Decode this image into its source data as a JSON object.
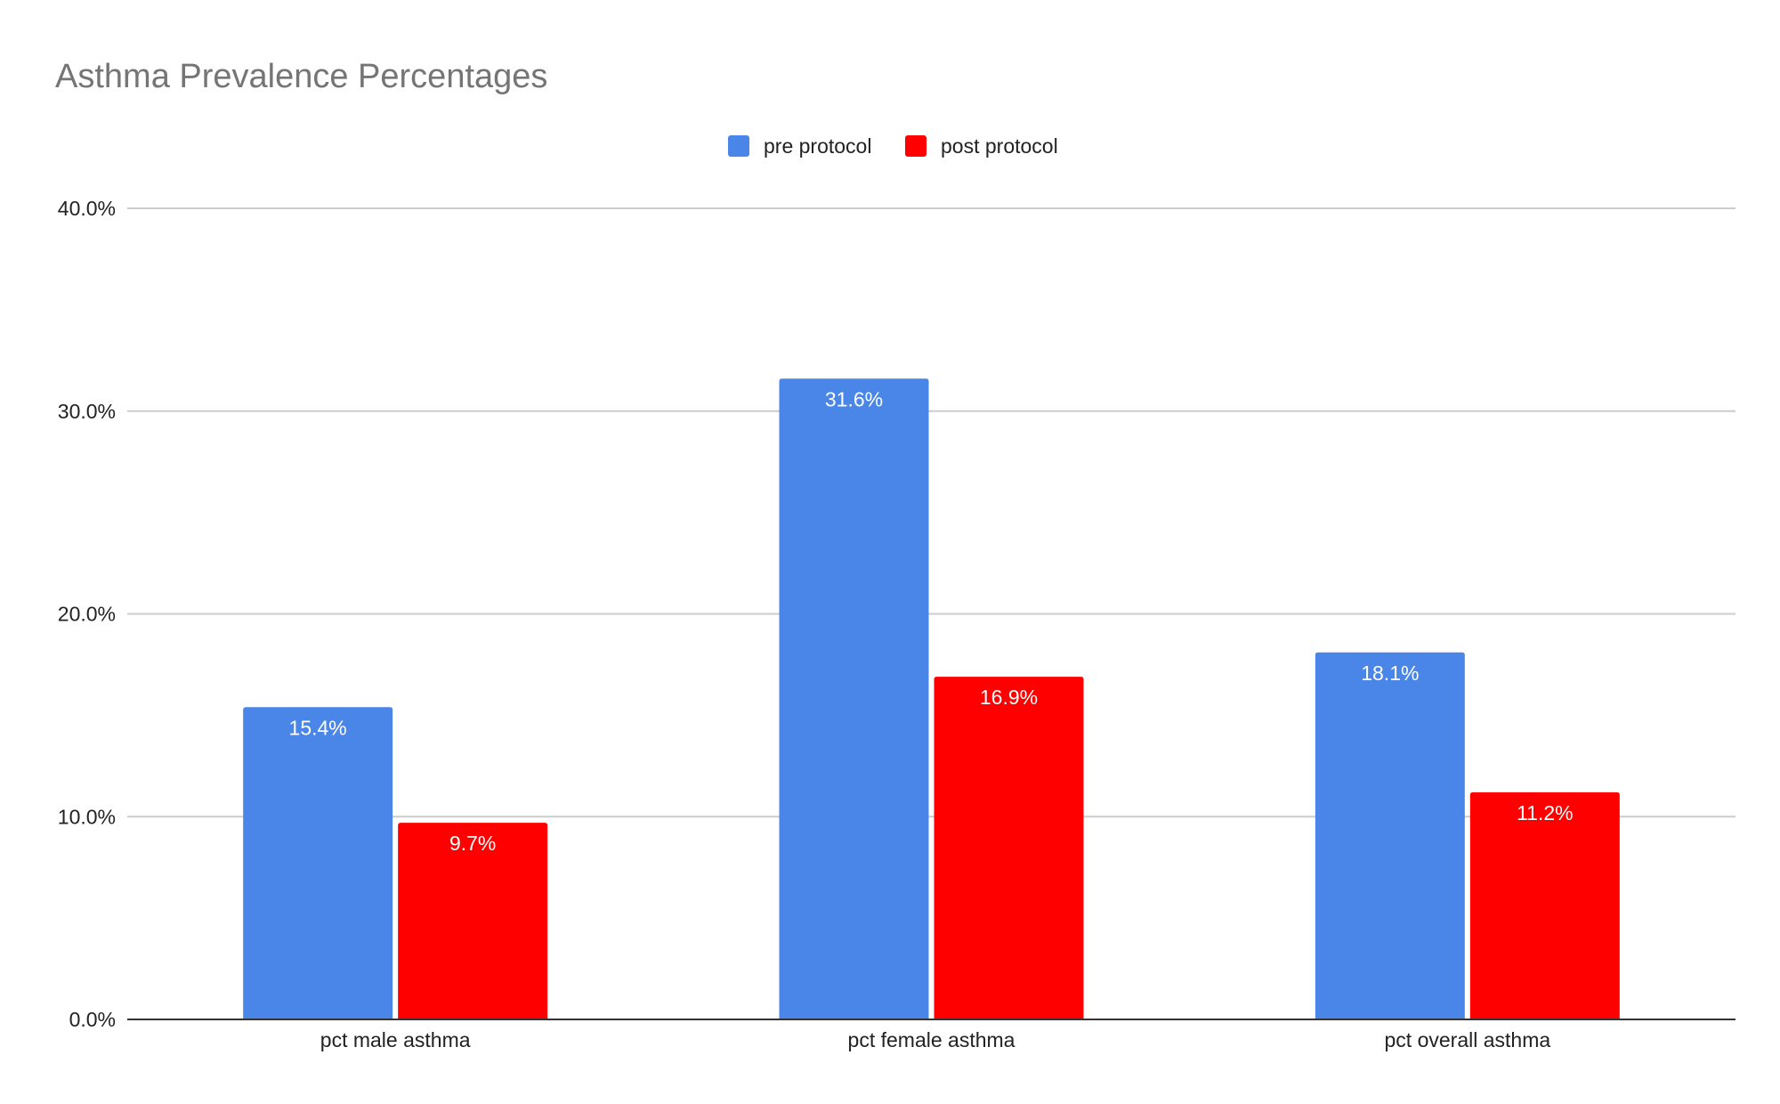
{
  "chart_data": {
    "type": "bar",
    "title": "Asthma Prevalence Percentages",
    "xlabel": "",
    "ylabel": "",
    "categories": [
      "pct male asthma",
      "pct female asthma",
      "pct overall asthma"
    ],
    "series": [
      {
        "name": "pre protocol",
        "color": "#4a86e8",
        "values": [
          15.4,
          31.6,
          18.1
        ],
        "labels": [
          "15.4%",
          "31.6%",
          "18.1%"
        ]
      },
      {
        "name": "post protocol",
        "color": "#ff0000",
        "values": [
          9.7,
          16.9,
          11.2
        ],
        "labels": [
          "9.7%",
          "16.9%",
          "11.2%"
        ]
      }
    ],
    "ylim": [
      0,
      40
    ],
    "yticks": [
      0,
      10,
      20,
      30,
      40
    ],
    "ytick_labels": [
      "0.0%",
      "10.0%",
      "20.0%",
      "30.0%",
      "40.0%"
    ],
    "grid": true,
    "legend_position": "top-center"
  }
}
